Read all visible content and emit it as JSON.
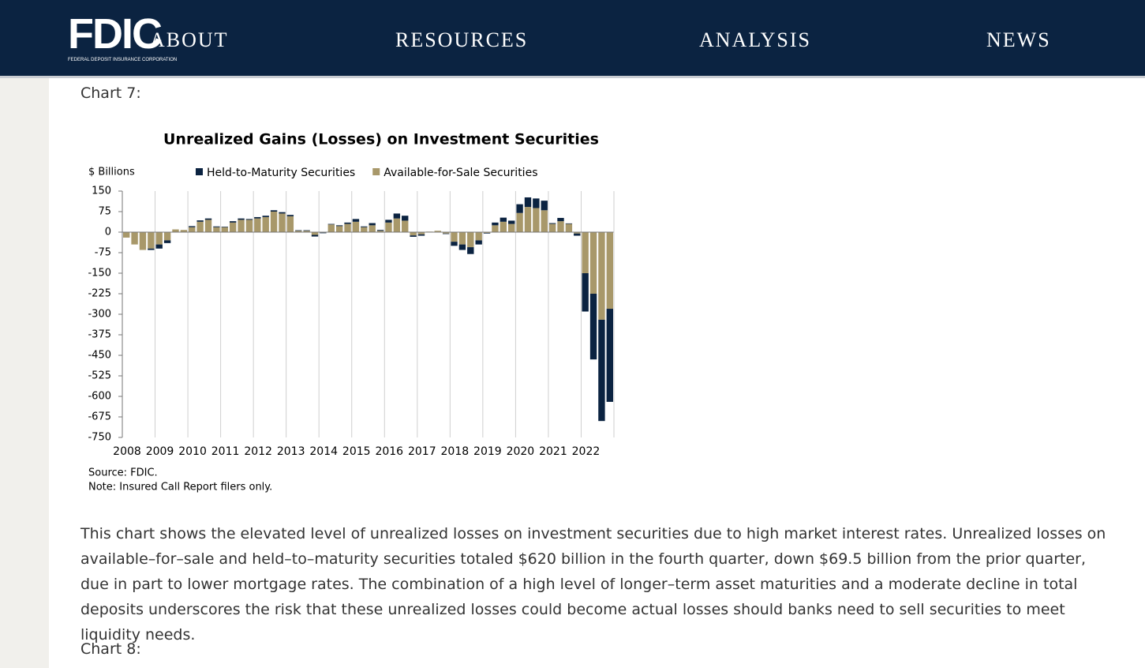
{
  "header": {
    "logo": "FDIC",
    "logo_sub": "FEDERAL DEPOSIT INSURANCE CORPORATION",
    "nav": [
      "ABOUT",
      "RESOURCES",
      "ANALYSIS",
      "NEWS"
    ]
  },
  "chart_label": "Chart 7:",
  "chart_data": {
    "type": "bar",
    "stacked": true,
    "title": "Unrealized Gains (Losses) on Investment Securities",
    "y_label": "$ Billions",
    "categories": [
      "2008",
      null,
      null,
      null,
      "2009",
      null,
      null,
      null,
      "2010",
      null,
      null,
      null,
      "2011",
      null,
      null,
      null,
      "2012",
      null,
      null,
      null,
      "2013",
      null,
      null,
      null,
      "2014",
      null,
      null,
      null,
      "2015",
      null,
      null,
      null,
      "2016",
      null,
      null,
      null,
      "2017",
      null,
      null,
      null,
      "2018",
      null,
      null,
      null,
      "2019",
      null,
      null,
      null,
      "2020",
      null,
      null,
      null,
      "2021",
      null,
      null,
      null,
      "2022",
      null,
      null,
      null
    ],
    "series": [
      {
        "name": "Held-to-Maturity Securities",
        "color": "#0b2341",
        "values": [
          0,
          0,
          0,
          -5,
          -15,
          -10,
          0,
          0,
          4,
          5,
          5,
          3,
          2,
          5,
          5,
          3,
          5,
          5,
          5,
          5,
          5,
          2,
          2,
          -6,
          -2,
          2,
          3,
          5,
          10,
          3,
          8,
          3,
          10,
          18,
          18,
          -5,
          -5,
          0,
          0,
          -2,
          -15,
          -20,
          -25,
          -15,
          -2,
          10,
          15,
          12,
          32,
          35,
          35,
          35,
          3,
          12,
          2,
          -8,
          -140,
          -240,
          -370,
          -340
        ]
      },
      {
        "name": "Available-for-Sale Securities",
        "color": "#a8986a",
        "values": [
          -20,
          -45,
          -65,
          -60,
          -45,
          -30,
          10,
          8,
          18,
          38,
          45,
          18,
          18,
          35,
          45,
          45,
          50,
          55,
          75,
          68,
          58,
          5,
          5,
          -10,
          -2,
          28,
          22,
          30,
          38,
          18,
          25,
          5,
          35,
          50,
          42,
          -12,
          -8,
          2,
          5,
          -5,
          -35,
          -45,
          -55,
          -30,
          -3,
          25,
          38,
          30,
          70,
          92,
          88,
          80,
          30,
          40,
          30,
          -5,
          -150,
          -225,
          -320,
          -280
        ]
      }
    ],
    "ylim": [
      -750,
      150
    ],
    "yticks": [
      150,
      75,
      0,
      -75,
      -150,
      -225,
      -300,
      -375,
      -450,
      -525,
      -600,
      -675,
      -750
    ],
    "source": "Source: FDIC.",
    "note": "Note: Insured Call Report filers only."
  },
  "paragraph": "This chart shows the elevated level of unrealized losses on investment securities due to high market interest rates. Unrealized losses on available–for–sale and held–to–maturity securities totaled $620 billion in the fourth quarter, down $69.5 billion from the prior quarter, due in part to lower mortgage rates. The combination of a high level of longer–term asset maturities and a moderate decline in total deposits underscores the risk that these unrealized losses could become actual losses should banks need to sell securities to meet liquidity needs.",
  "next_label": "Chart 8:"
}
